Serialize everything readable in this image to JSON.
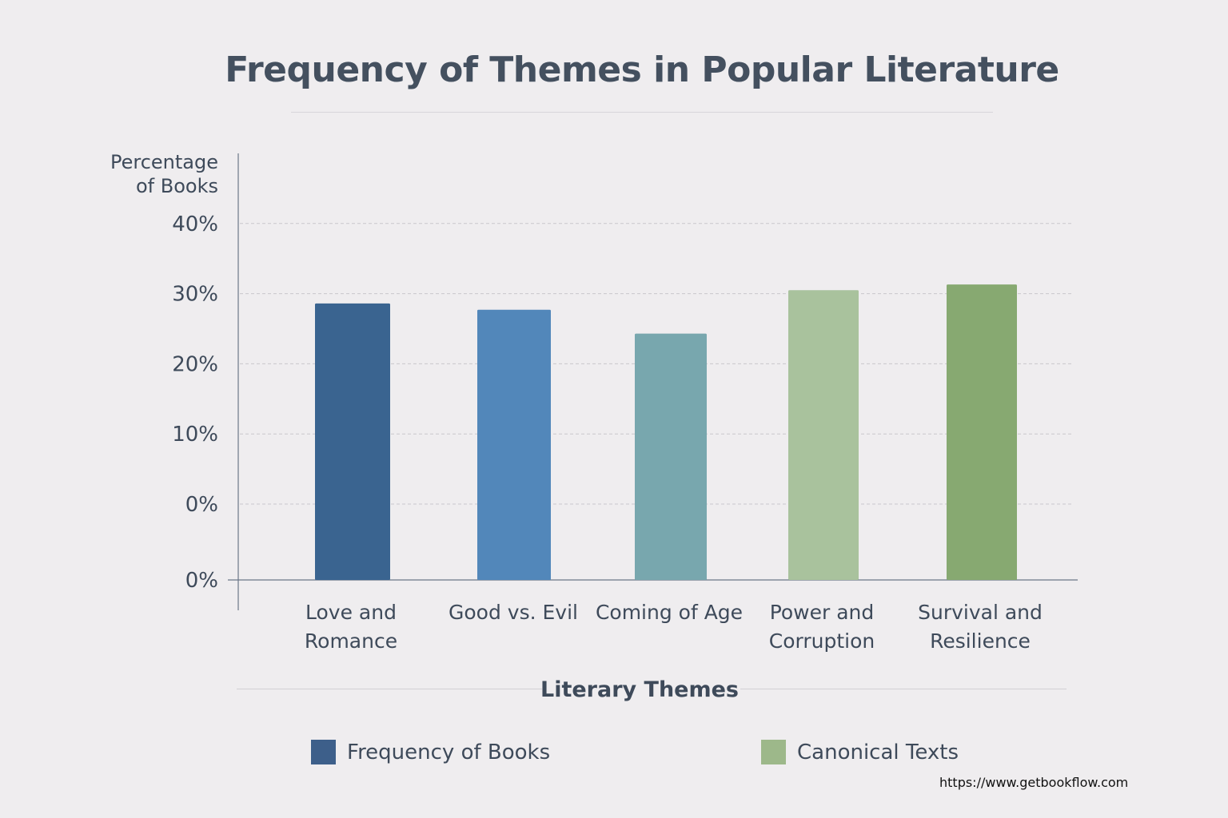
{
  "chart_data": {
    "type": "bar",
    "title": "Frequency of Themes in Popular Literature",
    "xlabel": "Literary Themes",
    "ylabel": [
      "Percentage",
      "of Books"
    ],
    "categories": [
      [
        "Love and",
        "Romance"
      ],
      [
        "Good vs. Evil"
      ],
      [
        "Coming of Age"
      ],
      [
        "Power and",
        "Corruption"
      ],
      [
        "Survival and",
        "Resilience"
      ]
    ],
    "values": [
      28.6,
      27.7,
      24.3,
      30.5,
      31.3
    ],
    "bar_colors": [
      "#3a6490",
      "#5287ba",
      "#78a7ae",
      "#a9c29d",
      "#87a971"
    ],
    "y_ticks": [
      {
        "label": "40%",
        "value": 40
      },
      {
        "label": "30%",
        "value": 30
      },
      {
        "label": "20%",
        "value": 20
      },
      {
        "label": "10%",
        "value": 10
      },
      {
        "label": "0%",
        "value": 0
      }
    ],
    "baseline_label": "0%",
    "ylim": [
      0,
      40
    ],
    "grid": true,
    "legend": {
      "placement": "bottom",
      "entries": [
        {
          "label": "Frequency of Books",
          "color": "#3d5f8a"
        },
        {
          "label": "Canonical Texts",
          "color": "#9db88a"
        }
      ]
    }
  },
  "footer": {
    "url": "https://www.getbookflow.com"
  }
}
